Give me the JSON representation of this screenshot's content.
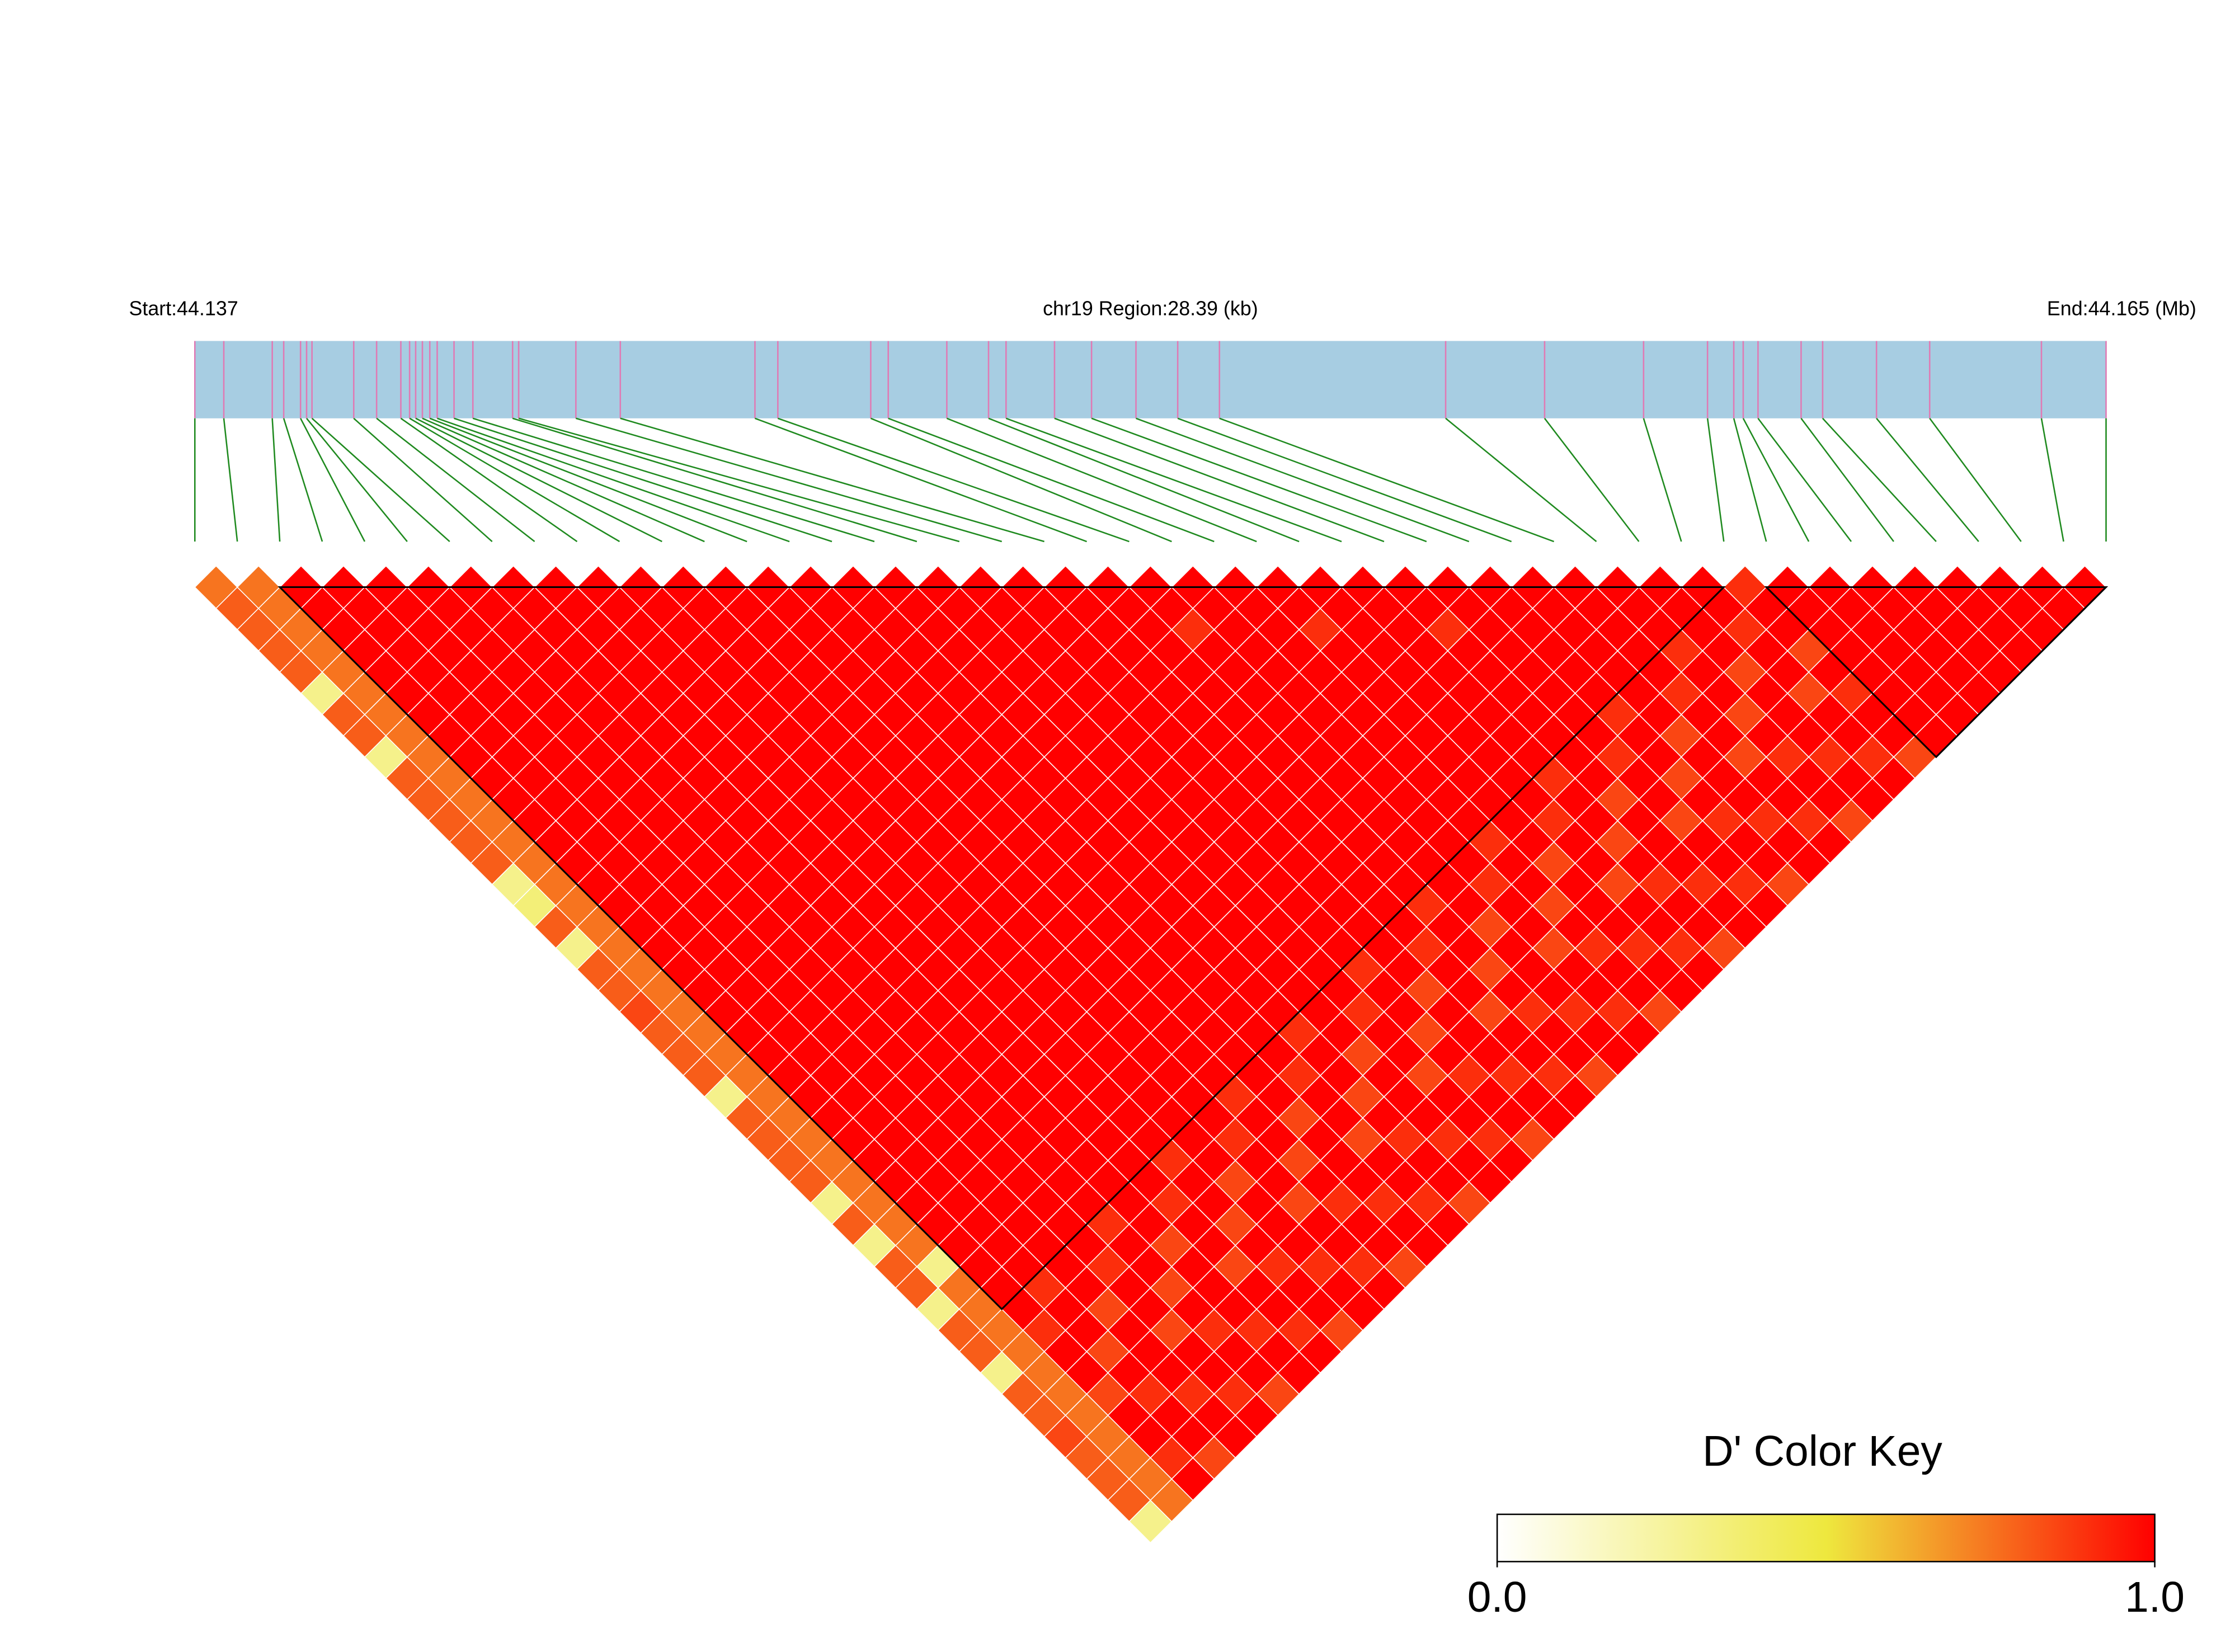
{
  "chart_data": {
    "type": "ld_heatmap",
    "title": "chr19 Region:28.39 (kb)",
    "start_label": "Start:44.137",
    "end_label": "End:44.165 (Mb)",
    "region_kb": [
      0,
      28.39
    ],
    "positions_kb": [
      0,
      0.43,
      1.15,
      1.32,
      1.57,
      1.66,
      1.74,
      2.36,
      2.7,
      3.06,
      3.19,
      3.28,
      3.38,
      3.49,
      3.6,
      3.85,
      4.13,
      4.72,
      4.81,
      5.66,
      6.32,
      8.32,
      8.66,
      10.04,
      10.3,
      11.17,
      11.79,
      12.05,
      12.77,
      13.32,
      13.98,
      14.6,
      15.22,
      18.58,
      20.05,
      21.52,
      22.47,
      22.86,
      23.0,
      23.22,
      23.86,
      24.18,
      24.98,
      25.77,
      27.43,
      28.39
    ],
    "d_prime": [
      [
        0.75,
        0.8,
        0.8,
        0.8,
        0.8,
        0.3,
        0.8,
        0.8,
        0.3,
        0.8,
        0.8,
        0.8,
        0.8,
        0.8,
        0.3,
        0.35,
        0.8,
        0.3,
        0.8,
        0.8,
        0.85,
        0.8,
        0.8,
        0.8,
        0.3,
        0.8,
        0.8,
        0.8,
        0.8,
        0.3,
        0.8,
        0.3,
        0.8,
        0.8,
        0.3,
        0.8,
        0.8,
        0.3,
        0.8,
        0.8,
        0.85,
        0.8,
        0.8,
        0.8,
        0.3
      ],
      [
        0.75,
        0.75,
        0.75,
        0.75,
        0.75,
        0.75,
        0.75,
        0.75,
        0.75,
        0.75,
        0.75,
        0.75,
        0.75,
        0.75,
        0.75,
        0.75,
        0.75,
        0.75,
        0.75,
        0.75,
        0.75,
        0.75,
        0.75,
        0.75,
        0.75,
        0.75,
        0.75,
        0.75,
        0.75,
        0.75,
        0.75,
        0.75,
        0.3,
        0.75,
        0.75,
        0.75,
        0.75,
        0.75,
        0.75,
        0.75,
        0.75,
        0.75,
        0.75,
        0.75
      ],
      [
        1,
        1,
        1,
        1,
        1,
        1,
        1,
        1,
        1,
        1,
        1,
        1,
        1,
        1,
        1,
        1,
        1,
        1,
        1,
        1,
        1,
        1,
        1,
        1,
        1,
        1,
        1,
        1,
        1,
        1,
        1,
        1,
        1,
        1,
        1,
        0.9,
        1,
        1,
        0.85,
        1,
        1,
        0.9,
        1
      ],
      [
        1,
        1,
        1,
        1,
        1,
        1,
        1,
        1,
        1,
        1,
        1,
        1,
        1,
        1,
        1,
        1,
        1,
        1,
        1,
        1,
        1,
        1,
        1,
        1,
        1,
        1,
        1,
        1,
        1,
        1,
        1,
        1,
        1,
        0.9,
        1,
        1,
        0.85,
        1,
        0.9,
        1,
        1,
        0.85
      ],
      [
        1,
        1,
        1,
        1,
        1,
        1,
        1,
        1,
        1,
        1,
        1,
        1,
        1,
        1,
        1,
        1,
        1,
        1,
        1,
        1,
        1,
        1,
        1,
        1,
        1,
        1,
        1,
        1,
        1,
        1,
        1,
        1,
        1,
        1,
        0.85,
        1,
        1,
        1,
        0.9,
        1,
        1
      ],
      [
        1,
        1,
        1,
        1,
        1,
        1,
        1,
        1,
        1,
        1,
        1,
        1,
        1,
        1,
        1,
        1,
        1,
        1,
        1,
        1,
        1,
        1,
        1,
        1,
        1,
        1,
        1,
        1,
        1,
        1,
        1,
        1,
        0.9,
        1,
        1,
        0.85,
        1,
        1,
        0.9,
        1
      ],
      [
        1,
        1,
        1,
        1,
        1,
        1,
        1,
        1,
        1,
        1,
        1,
        1,
        1,
        1,
        1,
        1,
        1,
        1,
        1,
        1,
        1,
        1,
        1,
        1,
        1,
        1,
        1,
        1,
        1,
        1,
        0.9,
        1,
        1,
        0.85,
        1,
        0.9,
        1,
        1,
        0.85
      ],
      [
        1,
        1,
        1,
        1,
        1,
        1,
        1,
        1,
        1,
        1,
        1,
        1,
        1,
        1,
        1,
        1,
        1,
        1,
        1,
        1,
        1,
        1,
        1,
        1,
        1,
        1,
        1,
        1,
        1,
        1,
        1,
        0.85,
        1,
        1,
        1,
        0.9,
        1,
        1
      ],
      [
        1,
        1,
        1,
        1,
        1,
        1,
        1,
        1,
        1,
        1,
        1,
        1,
        1,
        1,
        1,
        1,
        1,
        1,
        1,
        1,
        1,
        1,
        1,
        1,
        1,
        1,
        1,
        1,
        1,
        0.9,
        1,
        1,
        0.85,
        1,
        1,
        0.9,
        1
      ],
      [
        1,
        1,
        1,
        1,
        1,
        1,
        1,
        1,
        1,
        1,
        1,
        1,
        1,
        1,
        1,
        1,
        1,
        1,
        1,
        1,
        1,
        1,
        1,
        1,
        1,
        1,
        1,
        0.9,
        1,
        1,
        0.85,
        1,
        0.9,
        1,
        1,
        0.85
      ],
      [
        1,
        1,
        1,
        1,
        1,
        1,
        1,
        1,
        1,
        1,
        1,
        1,
        1,
        1,
        1,
        1,
        1,
        1,
        1,
        1,
        1,
        1,
        1,
        1,
        1,
        1,
        1,
        1,
        0.85,
        1,
        1,
        1,
        0.9,
        1,
        1
      ],
      [
        1,
        1,
        1,
        1,
        1,
        1,
        1,
        1,
        1,
        1,
        1,
        1,
        1,
        1,
        1,
        1,
        1,
        1,
        1,
        1,
        1,
        1,
        1,
        1,
        1,
        1,
        0.9,
        1,
        1,
        0.85,
        1,
        1,
        0.9,
        1
      ],
      [
        1,
        1,
        1,
        1,
        1,
        1,
        1,
        1,
        1,
        1,
        1,
        1,
        1,
        1,
        1,
        1,
        1,
        1,
        1,
        1,
        1,
        1,
        1,
        1,
        0.9,
        1,
        1,
        0.85,
        1,
        0.9,
        1,
        1,
        0.85
      ],
      [
        1,
        1,
        1,
        1,
        1,
        1,
        1,
        1,
        1,
        1,
        1,
        1,
        1,
        1,
        1,
        1,
        1,
        1,
        1,
        1,
        1,
        1,
        1,
        1,
        1,
        0.85,
        1,
        1,
        1,
        0.9,
        1,
        1
      ],
      [
        1,
        1,
        1,
        1,
        1,
        1,
        1,
        1,
        1,
        1,
        1,
        1,
        1,
        1,
        1,
        1,
        1,
        1,
        1,
        1,
        1,
        1,
        1,
        0.9,
        1,
        1,
        0.85,
        1,
        1,
        0.9,
        1
      ],
      [
        1,
        1,
        1,
        1,
        1,
        1,
        1,
        1,
        1,
        1,
        1,
        1,
        1,
        1,
        1,
        1,
        1,
        1,
        1,
        1,
        1,
        0.9,
        1,
        1,
        0.85,
        1,
        0.9,
        1,
        1,
        0.85
      ],
      [
        1,
        1,
        1,
        1,
        1,
        1,
        1,
        1,
        1,
        1,
        1,
        1,
        1,
        1,
        1,
        1,
        1,
        1,
        1,
        1,
        1,
        1,
        0.85,
        1,
        1,
        1,
        0.9,
        1,
        1
      ],
      [
        1,
        1,
        1,
        1,
        1,
        1,
        1,
        1,
        1,
        1,
        1,
        1,
        1,
        1,
        1,
        1,
        1,
        1,
        1,
        1,
        0.9,
        1,
        1,
        0.85,
        1,
        1,
        0.9,
        1
      ],
      [
        1,
        1,
        1,
        1,
        1,
        1,
        1,
        1,
        1,
        1,
        1,
        1,
        1,
        1,
        1,
        1,
        1,
        1,
        0.9,
        1,
        1,
        0.85,
        1,
        0.9,
        1,
        1,
        0.85
      ],
      [
        1,
        1,
        1,
        1,
        1,
        1,
        1,
        1,
        1,
        1,
        1,
        1,
        1,
        1,
        1,
        1,
        1,
        1,
        1,
        0.85,
        1,
        1,
        1,
        0.9,
        1,
        1
      ],
      [
        1,
        1,
        1,
        1,
        1,
        1,
        1,
        1,
        1,
        1,
        1,
        1,
        1,
        1,
        1,
        1,
        1,
        0.9,
        1,
        1,
        0.85,
        1,
        1,
        0.9,
        1
      ],
      [
        1,
        1,
        1,
        1,
        1,
        1,
        1,
        1,
        1,
        1,
        1,
        1,
        1,
        1,
        1,
        0.9,
        1,
        1,
        0.85,
        1,
        0.9,
        1,
        1,
        0.85
      ],
      [
        1,
        1,
        0.9,
        1,
        1,
        1,
        1,
        1,
        1,
        1,
        1,
        1,
        1,
        1,
        1,
        1,
        0.85,
        1,
        1,
        1,
        0.9,
        1,
        1
      ],
      [
        1,
        1,
        1,
        1,
        1,
        1,
        1,
        1,
        1,
        1,
        1,
        1,
        1,
        1,
        0.9,
        1,
        1,
        0.85,
        1,
        1,
        0.9,
        1
      ],
      [
        1,
        1,
        1,
        1,
        1,
        1,
        1,
        1,
        1,
        1,
        1,
        1,
        0.9,
        1,
        1,
        0.85,
        1,
        0.9,
        1,
        1,
        0.85
      ],
      [
        1,
        1,
        0.9,
        1,
        1,
        1,
        1,
        1,
        1,
        1,
        1,
        1,
        1,
        0.85,
        1,
        1,
        1,
        0.9,
        1,
        1
      ],
      [
        1,
        1,
        1,
        1,
        1,
        1,
        1,
        1,
        1,
        1,
        1,
        0.9,
        1,
        1,
        0.85,
        1,
        1,
        0.9,
        1
      ],
      [
        1,
        1,
        1,
        1,
        1,
        1,
        1,
        1,
        1,
        0.9,
        1,
        1,
        0.85,
        1,
        0.9,
        1,
        1,
        0.85
      ],
      [
        1,
        1,
        0.9,
        1,
        1,
        1,
        1,
        1,
        1,
        1,
        0.85,
        1,
        1,
        1,
        0.9,
        1,
        1
      ],
      [
        1,
        1,
        1,
        1,
        1,
        1,
        1,
        1,
        0.9,
        1,
        1,
        0.85,
        1,
        1,
        0.9,
        1
      ],
      [
        1,
        1,
        1,
        1,
        1,
        1,
        0.9,
        1,
        1,
        0.85,
        1,
        0.9,
        1,
        1,
        0.85
      ],
      [
        1,
        1,
        1,
        1,
        1,
        1,
        1,
        0.85,
        1,
        1,
        1,
        0.9,
        1,
        1
      ],
      [
        1,
        1,
        1,
        1,
        1,
        0.9,
        1,
        1,
        0.85,
        1,
        1,
        0.9,
        1
      ],
      [
        1,
        1,
        1,
        0.9,
        1,
        1,
        0.85,
        1,
        0.9,
        1,
        1,
        0.85
      ],
      [
        1,
        1,
        1,
        1,
        0.85,
        1,
        1,
        1,
        0.9,
        1,
        1
      ],
      [
        1,
        1,
        0.9,
        1,
        1,
        0.85,
        1,
        1,
        0.9,
        1
      ],
      [
        0.9,
        1,
        1,
        0.85,
        1,
        0.9,
        1,
        1,
        0.85
      ],
      [
        1,
        1,
        1,
        1,
        1,
        1,
        1,
        1
      ],
      [
        1,
        1,
        1,
        1,
        1,
        1,
        1
      ],
      [
        1,
        1,
        1,
        1,
        1,
        1
      ],
      [
        1,
        1,
        1,
        1,
        1
      ],
      [
        1,
        1,
        1,
        1
      ],
      [
        1,
        1,
        1
      ],
      [
        1,
        1
      ],
      [
        1
      ]
    ],
    "blocks": [
      [
        2,
        36
      ],
      [
        37,
        45
      ]
    ],
    "color_key": {
      "title": "D' Color Key",
      "colors": [
        "#ffffff",
        "#eee83e",
        "#ff0000"
      ],
      "lim": [
        0,
        1
      ],
      "ticks": [
        {
          "value": 0,
          "label": "0.0"
        },
        {
          "value": 1,
          "label": "1.0"
        }
      ]
    }
  }
}
